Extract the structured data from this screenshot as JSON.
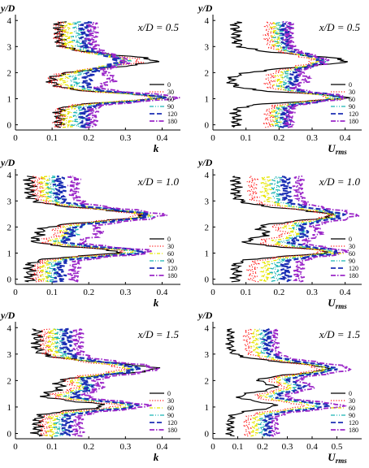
{
  "series_styles": [
    {
      "name": "0",
      "color": "#000000",
      "dash": "",
      "width": 1.2
    },
    {
      "name": "30",
      "color": "#ff1e1e",
      "dash": "1.2,2",
      "width": 1.2
    },
    {
      "name": "60",
      "color": "#e6e600",
      "dash": "4,2,1,2",
      "width": 1.3
    },
    {
      "name": "90",
      "color": "#19b4b4",
      "dash": "5,2,1,2,1,2",
      "width": 1.3
    },
    {
      "name": "120",
      "color": "#1c2fb4",
      "dash": "6,3",
      "width": 2.2
    },
    {
      "name": "180",
      "color": "#9b27c8",
      "dash": "6,2,1.5,2",
      "width": 1.8
    }
  ],
  "chart_data": [
    {
      "type": "line",
      "panel": "top-left",
      "annotation": "x/D = 0.5",
      "ylabel": "y/D",
      "xlabel": "k",
      "xlim": [
        0,
        0.45
      ],
      "ylim": [
        -0.2,
        4.1
      ],
      "xticks": [
        "0",
        "0.1",
        "0.2",
        "0.3",
        "0.4"
      ],
      "yticks": [
        "0",
        "1",
        "2",
        "3",
        "4"
      ],
      "legend": "right-lower",
      "series": [
        {
          "name": "0",
          "peaks": [
            0.12,
            0.38,
            0.08,
            0.4
          ]
        },
        {
          "name": "30",
          "peaks": [
            0.12,
            0.34,
            0.08,
            0.38
          ]
        },
        {
          "name": "60",
          "peaks": [
            0.14,
            0.3,
            0.12,
            0.38
          ]
        },
        {
          "name": "90",
          "peaks": [
            0.17,
            0.3,
            0.15,
            0.39
          ]
        },
        {
          "name": "120",
          "peaks": [
            0.19,
            0.28,
            0.2,
            0.4
          ]
        },
        {
          "name": "180",
          "peaks": [
            0.21,
            0.3,
            0.3,
            0.44
          ]
        }
      ]
    },
    {
      "type": "line",
      "panel": "top-right",
      "annotation": "x/D = 0.5",
      "ylabel": "y/D",
      "xlabel": "U_rms",
      "xlim": [
        0,
        0.45
      ],
      "ylim": [
        -0.2,
        4.1
      ],
      "xticks": [
        "0",
        "0.1",
        "0.2",
        "0.3",
        "0.4"
      ],
      "yticks": [
        "0",
        "1",
        "2",
        "3",
        "4"
      ],
      "legend": "right-lower",
      "series": [
        {
          "name": "0",
          "peaks": [
            0.07,
            0.4,
            0.04,
            0.4
          ]
        },
        {
          "name": "30",
          "peaks": [
            0.17,
            0.3,
            0.17,
            0.35
          ]
        },
        {
          "name": "60",
          "peaks": [
            0.19,
            0.32,
            0.21,
            0.36
          ]
        },
        {
          "name": "90",
          "peaks": [
            0.2,
            0.33,
            0.24,
            0.37
          ]
        },
        {
          "name": "120",
          "peaks": [
            0.22,
            0.33,
            0.27,
            0.39
          ]
        },
        {
          "name": "180",
          "peaks": [
            0.23,
            0.34,
            0.32,
            0.4
          ]
        }
      ]
    },
    {
      "type": "line",
      "panel": "middle-left",
      "annotation": "x/D = 1.0",
      "ylabel": "y/D",
      "xlabel": "k",
      "xlim": [
        0,
        0.45
      ],
      "ylim": [
        -0.2,
        4.1
      ],
      "xticks": [
        "0",
        "0.1",
        "0.2",
        "0.3",
        "0.4"
      ],
      "yticks": [
        "0",
        "1",
        "2",
        "3",
        "4"
      ],
      "legend": "right-lower",
      "series": [
        {
          "name": "0",
          "peaks": [
            0.04,
            0.35,
            0.08,
            0.28
          ]
        },
        {
          "name": "30",
          "peaks": [
            0.06,
            0.33,
            0.15,
            0.3
          ]
        },
        {
          "name": "60",
          "peaks": [
            0.08,
            0.36,
            0.18,
            0.32
          ]
        },
        {
          "name": "90",
          "peaks": [
            0.1,
            0.37,
            0.2,
            0.33
          ]
        },
        {
          "name": "120",
          "peaks": [
            0.12,
            0.36,
            0.17,
            0.35
          ]
        },
        {
          "name": "180",
          "peaks": [
            0.16,
            0.4,
            0.27,
            0.37
          ]
        }
      ]
    },
    {
      "type": "line",
      "panel": "middle-right",
      "annotation": "x/D = 1.0",
      "ylabel": "y/D",
      "xlabel": "U_rms",
      "xlim": [
        0,
        0.45
      ],
      "ylim": [
        -0.2,
        4.1
      ],
      "xticks": [
        "0",
        "0.1",
        "0.2",
        "0.3",
        "0.4"
      ],
      "yticks": [
        "0",
        "1",
        "2",
        "3",
        "4"
      ],
      "legend": "right-lower",
      "series": [
        {
          "name": "0",
          "peaks": [
            0.07,
            0.36,
            0.22,
            0.35
          ]
        },
        {
          "name": "30",
          "peaks": [
            0.12,
            0.35,
            0.28,
            0.33
          ]
        },
        {
          "name": "60",
          "peaks": [
            0.16,
            0.37,
            0.31,
            0.35
          ]
        },
        {
          "name": "90",
          "peaks": [
            0.19,
            0.38,
            0.33,
            0.37
          ]
        },
        {
          "name": "120",
          "peaks": [
            0.22,
            0.39,
            0.32,
            0.38
          ]
        },
        {
          "name": "180",
          "peaks": [
            0.26,
            0.43,
            0.36,
            0.4
          ]
        }
      ]
    },
    {
      "type": "line",
      "panel": "bottom-left",
      "annotation": "x/D = 1.5",
      "ylabel": "y/D",
      "xlabel": "k",
      "xlim": [
        0,
        0.45
      ],
      "ylim": [
        -0.2,
        4.1
      ],
      "xticks": [
        "0",
        "0.1",
        "0.2",
        "0.3",
        "0.4"
      ],
      "yticks": [
        "0",
        "1",
        "2",
        "3",
        "4"
      ],
      "legend": "right-lower",
      "series": [
        {
          "name": "0",
          "peaks": [
            0.06,
            0.38,
            0.16,
            0.24
          ]
        },
        {
          "name": "30",
          "peaks": [
            0.08,
            0.29,
            0.22,
            0.28
          ]
        },
        {
          "name": "60",
          "peaks": [
            0.1,
            0.31,
            0.24,
            0.31
          ]
        },
        {
          "name": "90",
          "peaks": [
            0.12,
            0.33,
            0.25,
            0.32
          ]
        },
        {
          "name": "120",
          "peaks": [
            0.14,
            0.33,
            0.24,
            0.33
          ]
        },
        {
          "name": "180",
          "peaks": [
            0.17,
            0.38,
            0.27,
            0.36
          ]
        }
      ]
    },
    {
      "type": "line",
      "panel": "bottom-right",
      "annotation": "x/D = 1.5",
      "ylabel": "y/D",
      "xlabel": "U_rms",
      "xlim": [
        0,
        0.6
      ],
      "ylim": [
        -0.2,
        4.1
      ],
      "xticks": [
        "0",
        "0.1",
        "0.2",
        "0.3",
        "0.4",
        "0.5"
      ],
      "yticks": [
        "0",
        "1",
        "2",
        "3",
        "4"
      ],
      "legend": "right-lower",
      "series": [
        {
          "name": "0",
          "peaks": [
            0.07,
            0.46,
            0.36,
            0.25
          ]
        },
        {
          "name": "30",
          "peaks": [
            0.14,
            0.42,
            0.38,
            0.36
          ]
        },
        {
          "name": "60",
          "peaks": [
            0.17,
            0.45,
            0.4,
            0.4
          ]
        },
        {
          "name": "90",
          "peaks": [
            0.2,
            0.48,
            0.43,
            0.43
          ]
        },
        {
          "name": "120",
          "peaks": [
            0.22,
            0.49,
            0.45,
            0.46
          ]
        },
        {
          "name": "180",
          "peaks": [
            0.25,
            0.55,
            0.5,
            0.52
          ]
        }
      ]
    }
  ]
}
